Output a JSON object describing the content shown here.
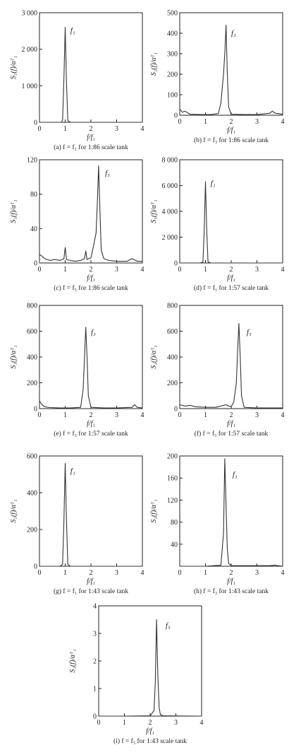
{
  "chart_data": [
    {
      "type": "line",
      "caption": "(a) f = f₁ for 1:86 scale tank",
      "xlabel": "f/f₁",
      "ylabel": "S₁(f)/αᵀ₁",
      "xlim": [
        0,
        4
      ],
      "ylim": [
        0,
        3000
      ],
      "xticks": [
        "0",
        "1",
        "2",
        "3",
        "4"
      ],
      "yticks": [
        {
          "v": 0,
          "label": "0"
        },
        {
          "v": 1000,
          "label": "1 000"
        },
        {
          "v": 2000,
          "label": "2 000"
        },
        {
          "v": 3000,
          "label": "3 000"
        }
      ],
      "annotation": {
        "text": "f₁",
        "x": 1.2,
        "y": 2450
      },
      "series": [
        {
          "x": [
            0.0,
            0.85,
            0.9,
            0.95,
            1.0,
            1.05,
            1.1,
            1.2,
            4.0
          ],
          "y": [
            0,
            0,
            60,
            1200,
            2600,
            1100,
            50,
            0,
            0
          ]
        }
      ]
    },
    {
      "type": "line",
      "caption": "(b) f = f₃ for 1:86 scale tank",
      "xlabel": "f/f₁",
      "ylabel": "S₁(f)/αᵀ₁",
      "xlim": [
        0,
        4
      ],
      "ylim": [
        0,
        500
      ],
      "xticks": [
        "0",
        "1",
        "2",
        "3",
        "4"
      ],
      "yticks": [
        {
          "v": 0,
          "label": "0"
        },
        {
          "v": 100,
          "label": "100"
        },
        {
          "v": 200,
          "label": "200"
        },
        {
          "v": 300,
          "label": "300"
        },
        {
          "v": 400,
          "label": "400"
        },
        {
          "v": 500,
          "label": "500"
        }
      ],
      "annotation": {
        "text": "f₃",
        "x": 2.0,
        "y": 390
      },
      "series": [
        {
          "x": [
            0.0,
            0.1,
            0.2,
            0.4,
            0.8,
            1.2,
            1.5,
            1.6,
            1.7,
            1.75,
            1.8,
            1.85,
            1.9,
            2.0,
            2.5,
            3.0,
            3.5,
            3.6,
            3.7,
            4.0
          ],
          "y": [
            30,
            15,
            20,
            5,
            3,
            3,
            8,
            60,
            200,
            300,
            440,
            200,
            40,
            5,
            3,
            3,
            10,
            20,
            10,
            5
          ]
        }
      ]
    },
    {
      "type": "line",
      "caption": "(c) f = f₅ for 1:86 scale tank",
      "xlabel": "f/f₁",
      "ylabel": "S₁(f)/αᵀ₁",
      "xlim": [
        0,
        4
      ],
      "ylim": [
        0,
        120
      ],
      "xticks": [
        "0",
        "1",
        "2",
        "3",
        "4"
      ],
      "yticks": [
        {
          "v": 0,
          "label": "0"
        },
        {
          "v": 40,
          "label": "40"
        },
        {
          "v": 80,
          "label": "80"
        },
        {
          "v": 120,
          "label": "120"
        }
      ],
      "annotation": {
        "text": "f₅",
        "x": 2.55,
        "y": 102
      },
      "series": [
        {
          "x": [
            0.0,
            0.1,
            0.2,
            0.4,
            0.6,
            0.8,
            0.95,
            1.0,
            1.05,
            1.2,
            1.4,
            1.6,
            1.75,
            1.8,
            1.85,
            2.0,
            2.1,
            2.2,
            2.25,
            2.3,
            2.35,
            2.4,
            2.5,
            2.7,
            3.0,
            3.4,
            3.6,
            3.8,
            4.0
          ],
          "y": [
            10,
            8,
            5,
            3,
            4,
            3,
            5,
            18,
            4,
            3,
            2,
            3,
            5,
            14,
            4,
            6,
            20,
            35,
            70,
            113,
            60,
            15,
            5,
            3,
            2,
            2,
            5,
            2,
            2
          ]
        }
      ]
    },
    {
      "type": "line",
      "caption": "(d) f = f₁ for 1:57 scale tank",
      "xlabel": "f/f₁",
      "ylabel": "S₁(f)/αᵀ₁",
      "xlim": [
        0,
        4
      ],
      "ylim": [
        0,
        8000
      ],
      "xticks": [
        "0",
        "1",
        "2",
        "3",
        "4"
      ],
      "yticks": [
        {
          "v": 0,
          "label": "0"
        },
        {
          "v": 2000,
          "label": "2 000"
        },
        {
          "v": 4000,
          "label": "4 000"
        },
        {
          "v": 6000,
          "label": "6 000"
        },
        {
          "v": 8000,
          "label": "8 000"
        }
      ],
      "annotation": {
        "text": "f₁",
        "x": 1.2,
        "y": 6000
      },
      "series": [
        {
          "x": [
            0.0,
            0.8,
            0.9,
            0.95,
            1.0,
            1.05,
            1.1,
            1.2,
            4.0
          ],
          "y": [
            0,
            0,
            80,
            2500,
            6300,
            2500,
            80,
            0,
            0
          ]
        }
      ]
    },
    {
      "type": "line",
      "caption": "(e) f = f₃ for 1:57 scale tank",
      "xlabel": "f/f₁",
      "ylabel": "S₁(f)/αᵀ₁",
      "xlim": [
        0,
        4
      ],
      "ylim": [
        0,
        800
      ],
      "xticks": [
        "0",
        "1",
        "2",
        "3",
        "4"
      ],
      "yticks": [
        {
          "v": 0,
          "label": "0"
        },
        {
          "v": 200,
          "label": "200"
        },
        {
          "v": 400,
          "label": "400"
        },
        {
          "v": 600,
          "label": "600"
        },
        {
          "v": 800,
          "label": "800"
        }
      ],
      "annotation": {
        "text": "f₃",
        "x": 2.0,
        "y": 575
      },
      "series": [
        {
          "x": [
            0.0,
            0.1,
            0.2,
            0.4,
            0.8,
            1.2,
            1.6,
            1.7,
            1.75,
            1.8,
            1.85,
            1.9,
            2.0,
            2.5,
            3.0,
            3.6,
            3.7,
            3.8,
            4.0
          ],
          "y": [
            60,
            30,
            15,
            8,
            5,
            5,
            10,
            150,
            400,
            630,
            400,
            100,
            10,
            5,
            5,
            10,
            30,
            10,
            5
          ]
        }
      ]
    },
    {
      "type": "line",
      "caption": "(f) f = f₅ for 1:57 scale tank",
      "xlabel": "f/f₁",
      "ylabel": "S₁(f)/αᵀ₁",
      "xlim": [
        0,
        4
      ],
      "ylim": [
        0,
        800
      ],
      "xticks": [
        "0",
        "1",
        "2",
        "3",
        "4"
      ],
      "yticks": [
        {
          "v": 0,
          "label": "0"
        },
        {
          "v": 200,
          "label": "200"
        },
        {
          "v": 400,
          "label": "400"
        },
        {
          "v": 600,
          "label": "600"
        },
        {
          "v": 800,
          "label": "800"
        }
      ],
      "annotation": {
        "text": "f₅",
        "x": 2.6,
        "y": 575
      },
      "series": [
        {
          "x": [
            0.0,
            0.2,
            0.4,
            0.6,
            1.0,
            1.4,
            1.8,
            1.9,
            2.0,
            2.1,
            2.2,
            2.25,
            2.3,
            2.35,
            2.4,
            2.5,
            3.0,
            3.5,
            4.0
          ],
          "y": [
            30,
            20,
            25,
            15,
            10,
            10,
            30,
            20,
            15,
            50,
            200,
            450,
            660,
            400,
            100,
            10,
            5,
            5,
            5
          ]
        }
      ]
    },
    {
      "type": "line",
      "caption": "(g) f = f₁ for 1:43 scale tank",
      "xlabel": "f/f₁",
      "ylabel": "S₁(f)/αᵀ₁",
      "xlim": [
        0,
        4
      ],
      "ylim": [
        0,
        600
      ],
      "xticks": [
        "0",
        "1",
        "2",
        "3",
        "4"
      ],
      "yticks": [
        {
          "v": 0,
          "label": "0"
        },
        {
          "v": 200,
          "label": "200"
        },
        {
          "v": 400,
          "label": "400"
        },
        {
          "v": 600,
          "label": "600"
        }
      ],
      "annotation": {
        "text": "f₁",
        "x": 1.2,
        "y": 505
      },
      "series": [
        {
          "x": [
            0.0,
            0.8,
            0.9,
            0.95,
            1.0,
            1.05,
            1.1,
            1.2,
            4.0
          ],
          "y": [
            0,
            0,
            10,
            250,
            560,
            250,
            10,
            0,
            0
          ]
        }
      ]
    },
    {
      "type": "line",
      "caption": "(h) f = f₃ for 1:43 scale tank",
      "xlabel": "f/f₁",
      "ylabel": "S₁(f)/αᵀ₁",
      "xlim": [
        0,
        4
      ],
      "ylim": [
        0,
        200
      ],
      "xticks": [
        "0",
        "1",
        "2",
        "3",
        "4"
      ],
      "yticks": [
        {
          "v": 40,
          "label": "40"
        },
        {
          "v": 80,
          "label": "80"
        },
        {
          "v": 120,
          "label": "120"
        },
        {
          "v": 160,
          "label": "160"
        },
        {
          "v": 200,
          "label": "200"
        }
      ],
      "annotation": {
        "text": "f₃",
        "x": 2.05,
        "y": 162
      },
      "series": [
        {
          "x": [
            0.0,
            1.0,
            1.6,
            1.7,
            1.75,
            1.8,
            1.85,
            1.9,
            2.0,
            3.5,
            3.7,
            3.8,
            4.0
          ],
          "y": [
            0,
            0,
            2,
            60,
            195,
            110,
            30,
            5,
            1,
            1,
            2,
            1,
            0
          ]
        }
      ]
    },
    {
      "type": "line",
      "caption": "(i) f = f₅ for 1:43 scale tank",
      "xlabel": "f/f₁",
      "ylabel": "S₁(f)/αᵀ₁",
      "xlim": [
        0,
        4
      ],
      "ylim": [
        0,
        4
      ],
      "xticks": [
        "0",
        "1",
        "2",
        "3",
        "4"
      ],
      "yticks": [
        {
          "v": 0,
          "label": "0"
        },
        {
          "v": 1,
          "label": "1"
        },
        {
          "v": 2,
          "label": "2"
        },
        {
          "v": 3,
          "label": "3"
        },
        {
          "v": 4,
          "label": "4"
        }
      ],
      "annotation": {
        "text": "f₅",
        "x": 2.6,
        "y": 3.2
      },
      "series": [
        {
          "x": [
            0.0,
            1.0,
            2.0,
            2.15,
            2.2,
            2.25,
            2.3,
            2.35,
            2.4,
            2.5,
            4.0
          ],
          "y": [
            0,
            0,
            0.01,
            0.2,
            1.2,
            3.5,
            1.5,
            0.3,
            0.05,
            0.01,
            0
          ]
        }
      ]
    }
  ]
}
